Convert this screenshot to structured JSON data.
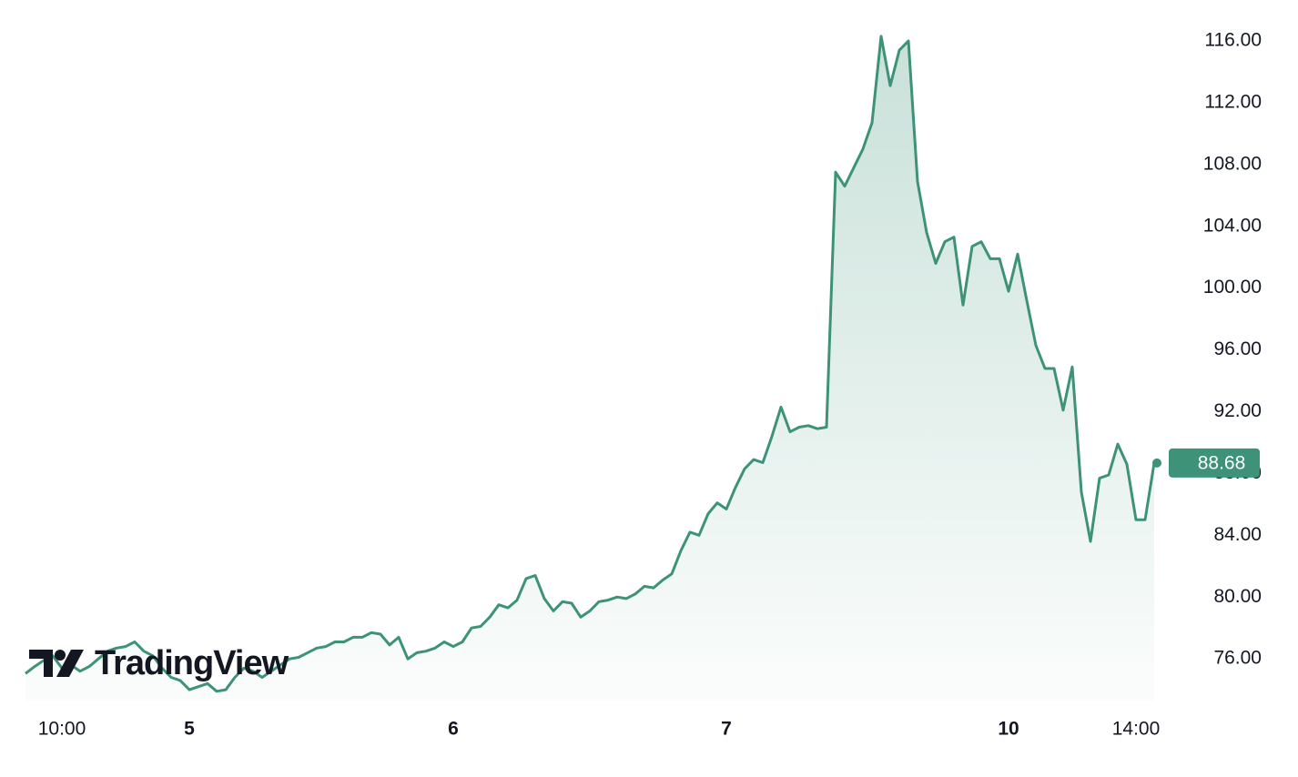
{
  "chart_data": {
    "type": "area",
    "watermark": "TradingView",
    "color": "#3d9278",
    "categories": [
      null,
      null,
      null,
      null,
      "10:00",
      null,
      null,
      null,
      null,
      null,
      null,
      null,
      null,
      null,
      null,
      null,
      null,
      null,
      "5",
      null,
      null,
      null,
      null,
      null,
      null,
      null,
      null,
      null,
      null,
      null,
      null,
      null,
      null,
      null,
      null,
      null,
      null,
      null,
      null,
      null,
      null,
      null,
      null,
      null,
      null,
      null,
      null,
      "6",
      null,
      null,
      null,
      null,
      null,
      null,
      null,
      null,
      null,
      null,
      null,
      null,
      null,
      null,
      null,
      null,
      null,
      null,
      null,
      null,
      null,
      null,
      null,
      null,
      null,
      null,
      null,
      null,
      null,
      "7",
      null,
      null,
      null,
      null,
      null,
      null,
      null,
      null,
      null,
      null,
      null,
      null,
      null,
      null,
      null,
      null,
      null,
      null,
      null,
      null,
      null,
      null,
      null,
      null,
      null,
      null,
      null,
      null,
      null,
      null,
      "10",
      null,
      null,
      null,
      null,
      null,
      null,
      null,
      null,
      null,
      null,
      null,
      null,
      null,
      "14:00",
      null,
      null
    ],
    "values": [
      75.05,
      75.5,
      75.9,
      76.2,
      75.4,
      75.6,
      75.2,
      75.5,
      76,
      76.5,
      76.7,
      76.8,
      77.1,
      76.5,
      76.2,
      75.4,
      74.8,
      74.6,
      74,
      74.2,
      74.4,
      73.9,
      74,
      74.8,
      75.4,
      75.2,
      74.8,
      75.2,
      75.6,
      76,
      76.1,
      76.4,
      76.7,
      76.8,
      77.1,
      77.1,
      77.4,
      77.4,
      77.7,
      77.6,
      76.9,
      77.4,
      76,
      76.4,
      76.5,
      76.7,
      77.1,
      76.8,
      77.1,
      78,
      78.1,
      78.7,
      79.5,
      79.3,
      79.8,
      81.2,
      81.4,
      79.9,
      79.1,
      79.7,
      79.6,
      78.7,
      79.1,
      79.7,
      79.8,
      80,
      79.9,
      80.2,
      80.7,
      80.6,
      81.1,
      81.5,
      83,
      84.2,
      84,
      85.4,
      86.1,
      85.7,
      87.1,
      88.3,
      88.9,
      88.7,
      90.4,
      92.3,
      90.7,
      91,
      91.1,
      90.9,
      91,
      107.5,
      106.6,
      107.8,
      109,
      110.7,
      116.3,
      113.1,
      115.4,
      116,
      106.9,
      103.6,
      101.6,
      103,
      103.3,
      98.9,
      102.7,
      103,
      101.9,
      101.9,
      99.8,
      102.2,
      99.2,
      96.3,
      94.8,
      94.8,
      92.1,
      94.9,
      86.8,
      83.6,
      87.7,
      87.9,
      89.9,
      88.6,
      85,
      85,
      88.68
    ],
    "ylim": [
      73.3,
      118.65
    ],
    "yticks": [
      {
        "value": 76,
        "label": "76.00"
      },
      {
        "value": 80,
        "label": "80.00"
      },
      {
        "value": 84,
        "label": "84.00"
      },
      {
        "value": 88,
        "label": "88.00"
      },
      {
        "value": 92,
        "label": "92.00"
      },
      {
        "value": 96,
        "label": "96.00"
      },
      {
        "value": 100,
        "label": "100.00"
      },
      {
        "value": 104,
        "label": "104.00"
      },
      {
        "value": 108,
        "label": "108.00"
      },
      {
        "value": 112,
        "label": "112.00"
      },
      {
        "value": 116,
        "label": "116.00"
      }
    ]
  }
}
